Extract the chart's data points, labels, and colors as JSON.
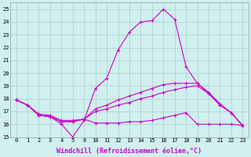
{
  "xlabel": "Windchill (Refroidissement éolien,°C)",
  "bg_color": "#cff0ee",
  "grid_color": "#aacccc",
  "line_color": "#cc00cc",
  "xlim": [
    -0.5,
    20.5
  ],
  "ylim": [
    15,
    25.5
  ],
  "yticks": [
    15,
    16,
    17,
    18,
    19,
    20,
    21,
    22,
    23,
    24,
    25
  ],
  "xtick_pos": [
    0,
    1,
    2,
    3,
    4,
    5,
    6,
    7,
    8,
    9,
    10,
    11,
    12,
    13,
    14,
    15,
    16,
    17,
    18,
    19,
    20
  ],
  "xtick_labels": [
    "0",
    "1",
    "2",
    "3",
    "4",
    "5",
    "6",
    "10",
    "11",
    "12",
    "13",
    "14",
    "15",
    "16",
    "17",
    "18",
    "19",
    "20",
    "21",
    "22",
    "23"
  ],
  "line1_y": [
    17.9,
    17.5,
    16.7,
    16.6,
    16.0,
    15.0,
    16.3,
    18.8,
    19.6,
    21.8,
    23.2,
    24.0,
    24.1,
    25.0,
    24.2,
    20.5,
    19.2,
    18.5,
    17.6,
    16.9,
    15.9
  ],
  "line2_y": [
    17.9,
    17.5,
    16.8,
    16.7,
    16.3,
    16.3,
    16.4,
    16.1,
    16.1,
    16.1,
    16.2,
    16.2,
    16.3,
    16.5,
    16.7,
    16.9,
    16.0,
    16.0,
    16.0,
    16.0,
    15.9
  ],
  "line3_y": [
    17.9,
    17.5,
    16.7,
    16.6,
    16.2,
    16.2,
    16.4,
    17.0,
    17.2,
    17.5,
    17.7,
    18.0,
    18.2,
    18.5,
    18.7,
    18.9,
    19.0,
    18.4,
    17.5,
    16.9,
    15.9
  ],
  "line4_y": [
    17.9,
    17.5,
    16.7,
    16.6,
    16.2,
    16.2,
    16.4,
    17.2,
    17.5,
    17.9,
    18.2,
    18.5,
    18.8,
    19.1,
    19.2,
    19.2,
    19.2,
    18.4,
    17.5,
    16.9,
    15.9
  ]
}
